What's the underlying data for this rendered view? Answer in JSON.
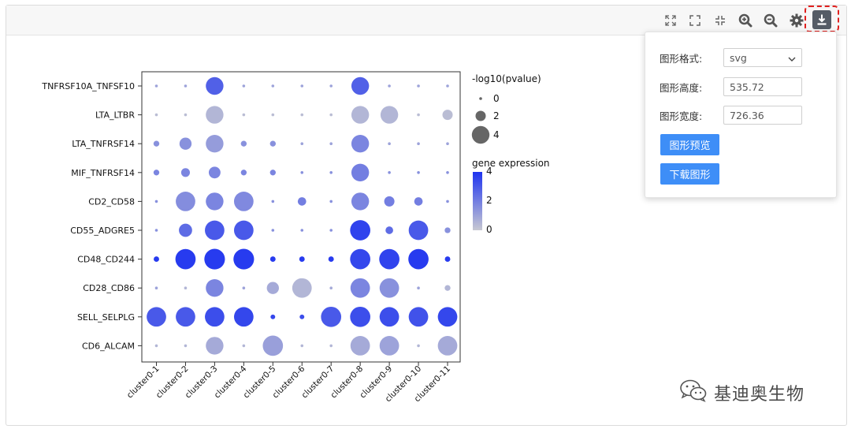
{
  "colors": {
    "accent": "#3e8ef7",
    "highlight": "#e0201e",
    "scale_high": "#1f34f0",
    "scale_low": "#c7c8d2"
  },
  "toolbar": {
    "icons": [
      "expand-icon",
      "fullscreen-icon",
      "shrink-icon",
      "zoom-in-icon",
      "zoom-out-icon",
      "gear-icon",
      "download-icon"
    ]
  },
  "download_panel": {
    "format_label": "图形格式:",
    "format_value": "svg",
    "height_label": "图形高度:",
    "height_value": "535.72",
    "width_label": "图形宽度:",
    "width_value": "726.36",
    "preview_button": "图形预览",
    "download_button": "下载图形"
  },
  "watermark": {
    "text": "基迪奥生物"
  },
  "chart_data": {
    "type": "scatter",
    "subtype": "dot-plot",
    "rows": [
      "TNFRSF10A_TNFSF10",
      "LTA_LTBR",
      "LTA_TNFRSF14",
      "MIF_TNFRSF14",
      "CD2_CD58",
      "CD55_ADGRE5",
      "CD48_CD244",
      "CD28_CD86",
      "SELL_SELPLG",
      "CD6_ALCAM"
    ],
    "columns": [
      "cluster0-1",
      "cluster0-2",
      "cluster0-3",
      "cluster0-4",
      "cluster0-5",
      "cluster0-6",
      "cluster0-7",
      "cluster0-8",
      "cluster0-9",
      "cluster0-10",
      "cluster0-11"
    ],
    "size_pvalue": [
      [
        0,
        0,
        4,
        0,
        0,
        0,
        0,
        4,
        0,
        0,
        0
      ],
      [
        0,
        0,
        4,
        0,
        0,
        0,
        0,
        4,
        4,
        0,
        2
      ],
      [
        0.8,
        2.5,
        4,
        0.8,
        0.8,
        0,
        0,
        4,
        0,
        0,
        0
      ],
      [
        0.8,
        1.6,
        2.4,
        0.8,
        0.8,
        0,
        0,
        4,
        0,
        0,
        0
      ],
      [
        0,
        4.5,
        4,
        4.5,
        0,
        1.5,
        0,
        4,
        2,
        1.5,
        0
      ],
      [
        0,
        2.8,
        4.5,
        4.5,
        0,
        0,
        0,
        4.7,
        1.3,
        4.5,
        0.8
      ],
      [
        0.7,
        4.7,
        4.8,
        4.8,
        0.7,
        0.7,
        0.7,
        4.7,
        4.7,
        4.7,
        0.7
      ],
      [
        0,
        0,
        4,
        0,
        2.5,
        4.5,
        0,
        4.5,
        4.5,
        0,
        0.8
      ],
      [
        4.5,
        4.5,
        4.5,
        4.5,
        0.5,
        0.5,
        4.7,
        4.7,
        4.5,
        4.5,
        4.5
      ],
      [
        0,
        0,
        4,
        0,
        4.7,
        0,
        0,
        4.5,
        4.5,
        0,
        4.5
      ]
    ],
    "color_expression": [
      [
        1,
        1,
        2.8,
        1,
        1,
        1,
        1,
        2.8,
        1,
        1,
        1
      ],
      [
        0.3,
        0.3,
        0.5,
        0.3,
        0.3,
        0.3,
        0.3,
        0.5,
        0.5,
        0.3,
        0.3
      ],
      [
        1.5,
        1.5,
        1.2,
        1.5,
        1.5,
        1,
        1,
        1.8,
        1,
        1,
        1
      ],
      [
        1.8,
        1.8,
        1.8,
        1.8,
        1.8,
        1.5,
        1.5,
        2,
        1.5,
        1.5,
        1.5
      ],
      [
        1.5,
        1.6,
        1.8,
        1.7,
        1.5,
        2,
        1.5,
        1.8,
        2,
        2,
        1.5
      ],
      [
        1.5,
        2.5,
        3,
        3,
        1.5,
        1.5,
        1.5,
        3.6,
        2.5,
        3,
        1.5
      ],
      [
        3.8,
        3.8,
        3.8,
        3.8,
        3.8,
        3.8,
        3.8,
        3.5,
        3.6,
        3.8,
        3.8
      ],
      [
        1,
        0.5,
        1.8,
        1,
        0.8,
        0.5,
        0.8,
        1.8,
        1.5,
        1,
        0.5
      ],
      [
        3,
        3,
        3.3,
        3.5,
        3.5,
        3.3,
        3,
        3.3,
        3.3,
        3.2,
        3.5
      ],
      [
        0.5,
        0.5,
        0.8,
        0.5,
        1.1,
        0.5,
        0.5,
        0.8,
        1,
        0.5,
        0.8
      ]
    ],
    "size_legend": {
      "title": "-log10(pvalue)",
      "ticks": [
        "0",
        "2",
        "4"
      ],
      "values": [
        0,
        2,
        4
      ]
    },
    "color_legend": {
      "title": "gene expression",
      "ticks": [
        "4",
        "2",
        "0"
      ],
      "range": [
        0,
        4
      ]
    },
    "xlabel": "",
    "ylabel": ""
  }
}
